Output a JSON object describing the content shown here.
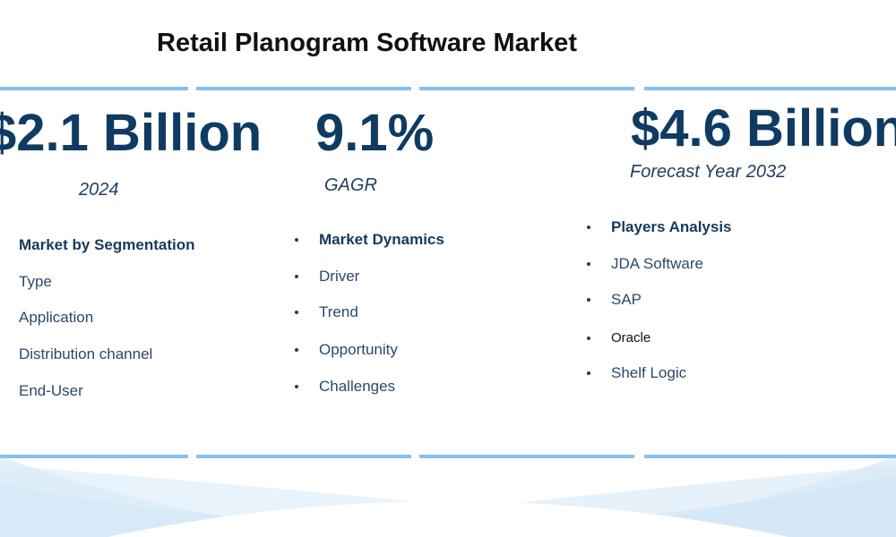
{
  "title": "Retail Planogram Software Market",
  "stats": [
    {
      "value": "$2.1 Billion",
      "label": "2024"
    },
    {
      "value": "9.1%",
      "label": "GAGR"
    },
    {
      "value": "$4.6 Billion",
      "label": "Forecast Year 2032"
    }
  ],
  "lists": [
    {
      "heading": "Market by Segmentation",
      "items": [
        "Type",
        "Application",
        "Distribution channel",
        "End-User"
      ]
    },
    {
      "heading": "Market Dynamics",
      "items": [
        "Driver",
        "Trend",
        "Opportunity",
        "Challenges"
      ]
    },
    {
      "heading": "Players Analysis",
      "items": [
        "JDA Software",
        "SAP",
        "Oracle",
        "Shelf Logic"
      ]
    }
  ]
}
